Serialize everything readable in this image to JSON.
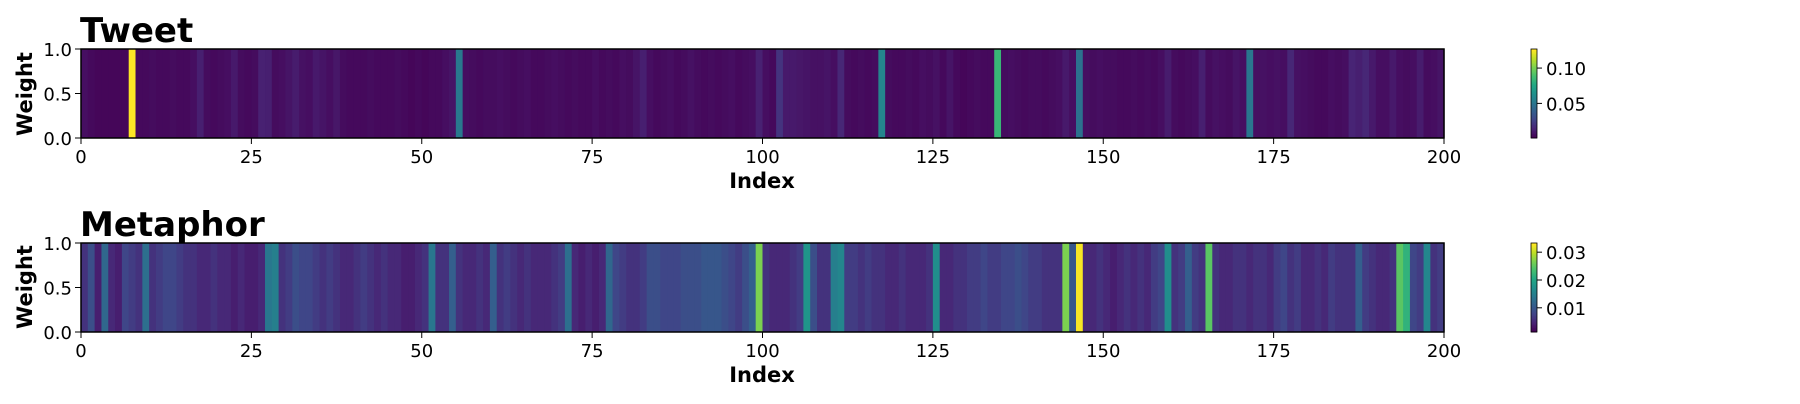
{
  "chart_data": [
    {
      "type": "heatmap",
      "title": "Tweet",
      "xlabel": "Index",
      "ylabel": "Weight",
      "xlim": [
        0,
        200
      ],
      "ylim": [
        0,
        1
      ],
      "xticks": [
        "0",
        "25",
        "50",
        "75",
        "100",
        "125",
        "150",
        "175",
        "200"
      ],
      "yticks": [
        "0.0",
        "0.5",
        "1.0"
      ],
      "colormap": "viridis",
      "colorbar": {
        "range": [
          0.001,
          0.127
        ],
        "ticks": [
          "0.05",
          "0.10"
        ]
      },
      "values": [
        0.006,
        0.004,
        0.003,
        0.003,
        0.003,
        0.003,
        0.003,
        0.127,
        0.004,
        0.004,
        0.005,
        0.004,
        0.004,
        0.005,
        0.004,
        0.004,
        0.006,
        0.012,
        0.005,
        0.004,
        0.005,
        0.006,
        0.01,
        0.005,
        0.004,
        0.005,
        0.013,
        0.012,
        0.005,
        0.006,
        0.008,
        0.011,
        0.007,
        0.006,
        0.01,
        0.008,
        0.006,
        0.009,
        0.005,
        0.004,
        0.004,
        0.004,
        0.005,
        0.004,
        0.004,
        0.004,
        0.005,
        0.004,
        0.003,
        0.004,
        0.003,
        0.004,
        0.004,
        0.006,
        0.008,
        0.052,
        0.006,
        0.005,
        0.004,
        0.005,
        0.005,
        0.006,
        0.005,
        0.004,
        0.005,
        0.006,
        0.004,
        0.004,
        0.005,
        0.006,
        0.005,
        0.004,
        0.005,
        0.004,
        0.004,
        0.006,
        0.004,
        0.005,
        0.004,
        0.006,
        0.005,
        0.008,
        0.012,
        0.006,
        0.004,
        0.005,
        0.006,
        0.004,
        0.005,
        0.007,
        0.005,
        0.004,
        0.005,
        0.004,
        0.005,
        0.006,
        0.004,
        0.005,
        0.006,
        0.013,
        0.006,
        0.004,
        0.02,
        0.01,
        0.01,
        0.009,
        0.008,
        0.007,
        0.007,
        0.008,
        0.006,
        0.015,
        0.005,
        0.004,
        0.005,
        0.004,
        0.005,
        0.058,
        0.005,
        0.004,
        0.004,
        0.005,
        0.004,
        0.006,
        0.005,
        0.007,
        0.004,
        0.008,
        0.004,
        0.003,
        0.004,
        0.005,
        0.004,
        0.004,
        0.085,
        0.005,
        0.006,
        0.005,
        0.004,
        0.005,
        0.005,
        0.004,
        0.005,
        0.006,
        0.01,
        0.006,
        0.048,
        0.006,
        0.005,
        0.006,
        0.005,
        0.005,
        0.004,
        0.004,
        0.005,
        0.004,
        0.005,
        0.004,
        0.006,
        0.011,
        0.005,
        0.004,
        0.005,
        0.006,
        0.012,
        0.005,
        0.007,
        0.006,
        0.005,
        0.008,
        0.006,
        0.05,
        0.006,
        0.007,
        0.006,
        0.007,
        0.006,
        0.015,
        0.007,
        0.006,
        0.005,
        0.004,
        0.004,
        0.006,
        0.005,
        0.006,
        0.014,
        0.012,
        0.015,
        0.01,
        0.006,
        0.006,
        0.01,
        0.006,
        0.005,
        0.006,
        0.011,
        0.005,
        0.006,
        0.008
      ]
    },
    {
      "type": "heatmap",
      "title": "Metaphor",
      "xlabel": "Index",
      "ylabel": "Weight",
      "xlim": [
        0,
        200
      ],
      "ylim": [
        0,
        1
      ],
      "xticks": [
        "0",
        "25",
        "50",
        "75",
        "100",
        "125",
        "150",
        "175",
        "200"
      ],
      "yticks": [
        "0.0",
        "0.5",
        "1.0"
      ],
      "colormap": "viridis",
      "colorbar": {
        "range": [
          0.0013,
          0.0333
        ],
        "ticks": [
          "0.01",
          "0.02",
          "0.03"
        ]
      },
      "values": [
        0.006,
        0.009,
        0.004,
        0.012,
        0.005,
        0.004,
        0.008,
        0.007,
        0.006,
        0.013,
        0.006,
        0.007,
        0.008,
        0.008,
        0.007,
        0.006,
        0.006,
        0.005,
        0.005,
        0.006,
        0.005,
        0.005,
        0.004,
        0.005,
        0.004,
        0.004,
        0.005,
        0.014,
        0.015,
        0.006,
        0.007,
        0.009,
        0.008,
        0.008,
        0.007,
        0.006,
        0.007,
        0.006,
        0.005,
        0.005,
        0.006,
        0.007,
        0.006,
        0.005,
        0.006,
        0.005,
        0.005,
        0.004,
        0.004,
        0.005,
        0.006,
        0.014,
        0.006,
        0.006,
        0.011,
        0.006,
        0.005,
        0.005,
        0.006,
        0.005,
        0.011,
        0.006,
        0.007,
        0.006,
        0.005,
        0.006,
        0.005,
        0.005,
        0.005,
        0.006,
        0.007,
        0.013,
        0.005,
        0.004,
        0.005,
        0.004,
        0.005,
        0.012,
        0.008,
        0.007,
        0.006,
        0.006,
        0.007,
        0.009,
        0.009,
        0.008,
        0.008,
        0.008,
        0.009,
        0.009,
        0.009,
        0.01,
        0.01,
        0.01,
        0.009,
        0.008,
        0.007,
        0.009,
        0.011,
        0.027,
        0.006,
        0.005,
        0.005,
        0.005,
        0.006,
        0.007,
        0.018,
        0.009,
        0.006,
        0.006,
        0.015,
        0.016,
        0.007,
        0.007,
        0.006,
        0.007,
        0.006,
        0.006,
        0.005,
        0.005,
        0.006,
        0.005,
        0.005,
        0.005,
        0.006,
        0.017,
        0.005,
        0.005,
        0.006,
        0.006,
        0.007,
        0.007,
        0.008,
        0.007,
        0.007,
        0.008,
        0.008,
        0.009,
        0.008,
        0.007,
        0.007,
        0.006,
        0.006,
        0.006,
        0.027,
        0.01,
        0.033,
        0.005,
        0.005,
        0.006,
        0.005,
        0.004,
        0.005,
        0.006,
        0.005,
        0.006,
        0.005,
        0.007,
        0.008,
        0.017,
        0.006,
        0.007,
        0.011,
        0.007,
        0.006,
        0.025,
        0.006,
        0.005,
        0.005,
        0.006,
        0.006,
        0.005,
        0.006,
        0.006,
        0.005,
        0.007,
        0.008,
        0.006,
        0.007,
        0.005,
        0.005,
        0.006,
        0.005,
        0.007,
        0.006,
        0.006,
        0.006,
        0.011,
        0.007,
        0.006,
        0.005,
        0.005,
        0.006,
        0.025,
        0.022,
        0.008,
        0.007,
        0.016,
        0.006,
        0.007
      ]
    }
  ]
}
